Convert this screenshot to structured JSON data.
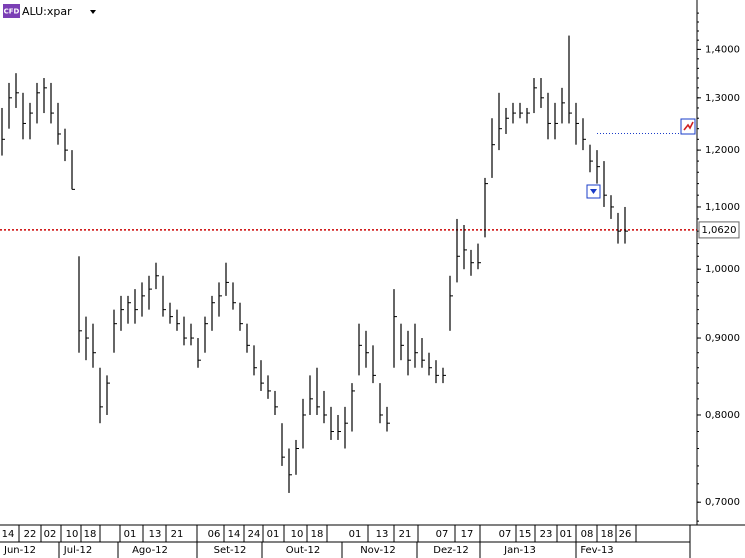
{
  "chart_data": {
    "type": "hlc",
    "title": "ALU:xpar",
    "badge": "CFD",
    "log_scale": true,
    "color": "#000000",
    "ylim": [
      0.676,
      1.51
    ],
    "yticks": [
      {
        "value": 0.7,
        "label": "0,7000"
      },
      {
        "value": 0.8,
        "label": "0,8000"
      },
      {
        "value": 0.9,
        "label": "0,9000"
      },
      {
        "value": 1.0,
        "label": "1,0000"
      },
      {
        "value": 1.1,
        "label": "1,1000"
      },
      {
        "value": 1.2,
        "label": "1,2000"
      },
      {
        "value": 1.3,
        "label": "1,3000"
      },
      {
        "value": 1.4,
        "label": "1,4000"
      }
    ],
    "last_price": {
      "value": 1.062,
      "label": "1,0620",
      "color": "#cc0000"
    },
    "target_level": {
      "value": 1.231,
      "color": "#1a3cc8"
    },
    "day_labels": [
      "14",
      "22",
      "02",
      "10",
      "18",
      "01",
      "13",
      "21",
      "06",
      "14",
      "24",
      "01",
      "10",
      "18",
      "01",
      "13",
      "21",
      "07",
      "17",
      "07",
      "15",
      "23",
      "01",
      "08",
      "18",
      "26"
    ],
    "month_labels": [
      "Jun-12",
      "Jul-12",
      "Ago-12",
      "Set-12",
      "Out-12",
      "Nov-12",
      "Dez-12",
      "Jan-13",
      "Fev-13"
    ],
    "high": [
      1.28,
      1.33,
      1.35,
      1.31,
      1.29,
      1.33,
      1.34,
      1.33,
      1.29,
      1.24,
      1.2,
      1.02,
      0.93,
      0.92,
      0.86,
      0.85,
      0.94,
      0.96,
      0.96,
      0.97,
      0.98,
      0.99,
      1.01,
      0.99,
      0.95,
      0.94,
      0.93,
      0.92,
      0.9,
      0.93,
      0.96,
      0.98,
      1.01,
      0.98,
      0.95,
      0.92,
      0.89,
      0.87,
      0.85,
      0.83,
      0.79,
      0.76,
      0.77,
      0.82,
      0.85,
      0.86,
      0.83,
      0.81,
      0.8,
      0.81,
      0.84,
      0.92,
      0.91,
      0.89,
      0.84,
      0.81,
      0.97,
      0.92,
      0.91,
      0.92,
      0.9,
      0.88,
      0.87,
      0.86,
      0.99,
      1.08,
      1.07,
      1.03,
      1.04,
      1.15,
      1.26,
      1.31,
      1.28,
      1.29,
      1.29,
      1.28,
      1.34,
      1.34,
      1.31,
      1.29,
      1.32,
      1.43,
      1.29,
      1.26,
      1.21,
      1.2,
      1.18,
      1.12,
      1.09,
      1.1
    ],
    "low": [
      1.19,
      1.24,
      1.28,
      1.22,
      1.22,
      1.25,
      1.27,
      1.25,
      1.21,
      1.18,
      1.13,
      0.88,
      0.87,
      0.86,
      0.79,
      0.8,
      0.88,
      0.91,
      0.92,
      0.92,
      0.93,
      0.94,
      0.97,
      0.93,
      0.92,
      0.91,
      0.89,
      0.89,
      0.86,
      0.88,
      0.91,
      0.93,
      0.96,
      0.94,
      0.91,
      0.88,
      0.85,
      0.83,
      0.82,
      0.8,
      0.74,
      0.71,
      0.73,
      0.76,
      0.8,
      0.8,
      0.79,
      0.77,
      0.77,
      0.76,
      0.78,
      0.85,
      0.86,
      0.84,
      0.79,
      0.78,
      0.86,
      0.87,
      0.85,
      0.86,
      0.86,
      0.85,
      0.84,
      0.84,
      0.91,
      0.98,
      1.0,
      0.99,
      1.0,
      1.05,
      1.15,
      1.2,
      1.23,
      1.25,
      1.26,
      1.25,
      1.27,
      1.28,
      1.22,
      1.22,
      1.25,
      1.25,
      1.21,
      1.2,
      1.16,
      1.14,
      1.1,
      1.08,
      1.04,
      1.04
    ],
    "close": [
      1.22,
      1.3,
      1.31,
      1.25,
      1.27,
      1.31,
      1.32,
      1.27,
      1.23,
      1.2,
      1.13,
      0.91,
      0.9,
      0.88,
      0.81,
      0.84,
      0.92,
      0.94,
      0.95,
      0.94,
      0.96,
      0.97,
      0.99,
      0.94,
      0.93,
      0.92,
      0.9,
      0.9,
      0.87,
      0.92,
      0.95,
      0.96,
      0.98,
      0.95,
      0.92,
      0.89,
      0.86,
      0.84,
      0.83,
      0.81,
      0.75,
      0.73,
      0.76,
      0.8,
      0.82,
      0.81,
      0.8,
      0.78,
      0.78,
      0.79,
      0.83,
      0.89,
      0.88,
      0.85,
      0.8,
      0.79,
      0.93,
      0.89,
      0.87,
      0.88,
      0.87,
      0.86,
      0.85,
      0.85,
      0.96,
      1.02,
      1.03,
      1.01,
      1.01,
      1.14,
      1.21,
      1.24,
      1.26,
      1.27,
      1.27,
      1.27,
      1.32,
      1.3,
      1.25,
      1.25,
      1.29,
      1.27,
      1.25,
      1.22,
      1.18,
      1.17,
      1.12,
      1.1,
      1.06,
      1.06
    ]
  }
}
